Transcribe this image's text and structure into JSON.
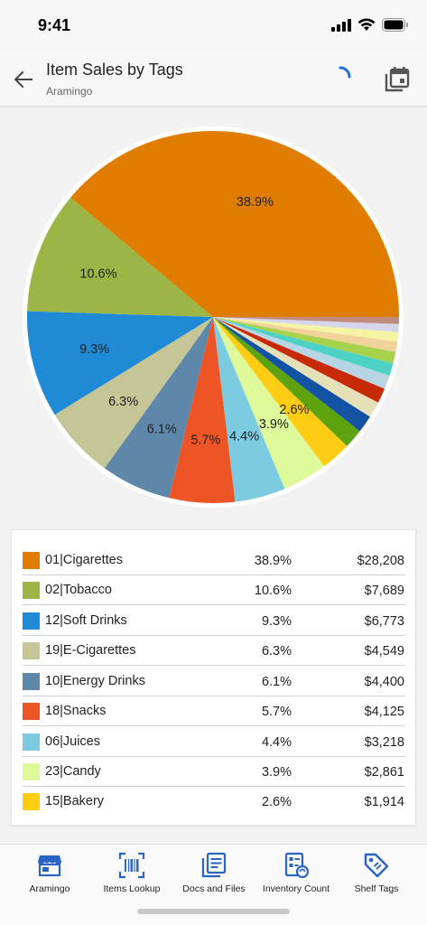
{
  "status": {
    "time": "9:41"
  },
  "header": {
    "title": "Item Sales by Tags",
    "subtitle": "Aramingo"
  },
  "colors": {
    "accent": "#2a64c5",
    "text": "#222222"
  },
  "chart_data": {
    "type": "pie",
    "slices": [
      {
        "label": "01|Cigarettes",
        "value": 38.9,
        "display": "38.9%",
        "color": "#e07c00"
      },
      {
        "label": "02|Tobacco",
        "value": 10.6,
        "display": "10.6%",
        "color": "#9bb546"
      },
      {
        "label": "12|Soft Drinks",
        "value": 9.3,
        "display": "9.3%",
        "color": "#1f8ad6"
      },
      {
        "label": "19|E-Cigarettes",
        "value": 6.3,
        "display": "6.3%",
        "color": "#c5c597"
      },
      {
        "label": "10|Energy Drinks",
        "value": 6.1,
        "display": "6.1%",
        "color": "#5e87aa"
      },
      {
        "label": "18|Snacks",
        "value": 5.7,
        "display": "5.7%",
        "color": "#ee5526"
      },
      {
        "label": "06|Juices",
        "value": 4.4,
        "display": "4.4%",
        "color": "#7ccbe0"
      },
      {
        "label": "23|Candy",
        "value": 3.9,
        "display": "3.9%",
        "color": "#def99a"
      },
      {
        "label": "15|Bakery",
        "value": 2.6,
        "display": "2.6%",
        "color": "#ffcc14"
      },
      {
        "label": "",
        "value": 1.7,
        "display": "",
        "color": "#5ea30e"
      },
      {
        "label": "",
        "value": 1.5,
        "display": "",
        "color": "#1452a3"
      },
      {
        "label": "",
        "value": 1.4,
        "display": "",
        "color": "#e6e0b8"
      },
      {
        "label": "",
        "value": 1.3,
        "display": "",
        "color": "#c62a06"
      },
      {
        "label": "",
        "value": 1.2,
        "display": "",
        "color": "#b7d5e4"
      },
      {
        "label": "",
        "value": 1.1,
        "display": "",
        "color": "#4fd2c6"
      },
      {
        "label": "",
        "value": 1.0,
        "display": "",
        "color": "#a7d24e"
      },
      {
        "label": "",
        "value": 0.9,
        "display": "",
        "color": "#f1d29a"
      },
      {
        "label": "",
        "value": 0.8,
        "display": "",
        "color": "#f4f4a4"
      },
      {
        "label": "",
        "value": 0.7,
        "display": "",
        "color": "#d6d5ee"
      },
      {
        "label": "",
        "value": 0.6,
        "display": "",
        "color": "#c08c7e"
      }
    ]
  },
  "legend": [
    {
      "name": "01|Cigarettes",
      "pct": "38.9%",
      "amount": "$28,208",
      "color": "#e07c00"
    },
    {
      "name": "02|Tobacco",
      "pct": "10.6%",
      "amount": "$7,689",
      "color": "#9bb546"
    },
    {
      "name": "12|Soft Drinks",
      "pct": "9.3%",
      "amount": "$6,773",
      "color": "#1f8ad6"
    },
    {
      "name": "19|E-Cigarettes",
      "pct": "6.3%",
      "amount": "$4,549",
      "color": "#c5c597"
    },
    {
      "name": "10|Energy Drinks",
      "pct": "6.1%",
      "amount": "$4,400",
      "color": "#5e87aa"
    },
    {
      "name": "18|Snacks",
      "pct": "5.7%",
      "amount": "$4,125",
      "color": "#ee5526"
    },
    {
      "name": "06|Juices",
      "pct": "4.4%",
      "amount": "$3,218",
      "color": "#7ccbe0"
    },
    {
      "name": "23|Candy",
      "pct": "3.9%",
      "amount": "$2,861",
      "color": "#def99a"
    },
    {
      "name": "15|Bakery",
      "pct": "2.6%",
      "amount": "$1,914",
      "color": "#ffcc14"
    }
  ],
  "nav": [
    {
      "label": "Aramingo",
      "icon": "store-icon"
    },
    {
      "label": "Items Lookup",
      "icon": "barcode-icon"
    },
    {
      "label": "Docs and Files",
      "icon": "documents-icon"
    },
    {
      "label": "Inventory Count",
      "icon": "inventory-count-icon"
    },
    {
      "label": "Shelf Tags",
      "icon": "tag-icon"
    }
  ]
}
